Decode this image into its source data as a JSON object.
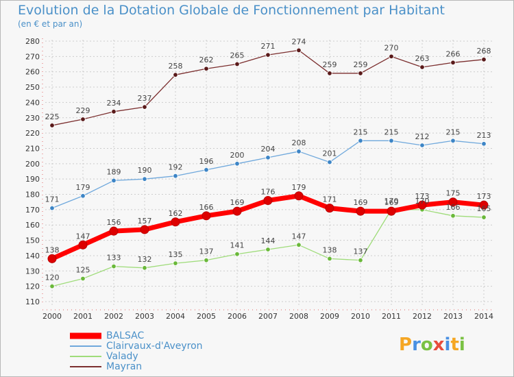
{
  "chart_data": {
    "type": "line",
    "title": "Evolution de la Dotation Globale de Fonctionnement par Habitant",
    "subtitle": "(en € et par an)",
    "x": [
      "2000",
      "2001",
      "2002",
      "2003",
      "2004",
      "2005",
      "2006",
      "2007",
      "2008",
      "2009",
      "2010",
      "2011",
      "2012",
      "2013",
      "2014"
    ],
    "ylim": [
      110,
      280
    ],
    "yticks": [
      "110",
      "120",
      "130",
      "140",
      "150",
      "160",
      "170",
      "180",
      "190",
      "200",
      "210",
      "220",
      "230",
      "240",
      "250",
      "260",
      "270",
      "280"
    ],
    "grid": true,
    "legend_position": "bottom-left",
    "series": [
      {
        "name": "BALSAC",
        "color": "#ff0000",
        "marker": "#dd0000",
        "values": [
          138,
          147,
          156,
          157,
          162,
          166,
          169,
          176,
          179,
          171,
          169,
          169,
          173,
          175,
          173
        ],
        "labels": [
          "138",
          "147",
          "156",
          "157",
          "162",
          "166",
          "169",
          "176",
          "179",
          "171",
          "169",
          "169",
          "173",
          "175",
          "173"
        ]
      },
      {
        "name": "Clairvaux-d'Aveyron",
        "color": "#6fa8dc",
        "marker": "#3d85c6",
        "values": [
          171,
          179,
          189,
          190,
          192,
          196,
          200,
          204,
          208,
          201,
          215,
          215,
          212,
          215,
          213
        ],
        "labels": [
          "171",
          "179",
          "189",
          "190",
          "192",
          "196",
          "200",
          "204",
          "208",
          "201",
          "215",
          "215",
          "212",
          "215",
          "213"
        ]
      },
      {
        "name": "Valady",
        "color": "#9fdc7a",
        "marker": "#6ab83a",
        "values": [
          120,
          125,
          133,
          132,
          135,
          137,
          141,
          144,
          147,
          138,
          137,
          170,
          170,
          166,
          165
        ],
        "labels": [
          "120",
          "125",
          "133",
          "132",
          "135",
          "137",
          "141",
          "144",
          "147",
          "138",
          "137",
          "170",
          "170",
          "166",
          "165"
        ]
      },
      {
        "name": "Mayran",
        "color": "#7b2e2e",
        "marker": "#5a1a1a",
        "values": [
          225,
          229,
          234,
          237,
          258,
          262,
          265,
          271,
          274,
          259,
          259,
          270,
          263,
          266,
          268
        ],
        "labels": [
          "225",
          "229",
          "234",
          "237",
          "258",
          "262",
          "265",
          "271",
          "274",
          "259",
          "259",
          "270",
          "263",
          "266",
          "268"
        ]
      }
    ]
  },
  "logo": {
    "letters": [
      "P",
      "r",
      "o",
      "x",
      "i",
      "t",
      "i"
    ],
    "colors": [
      "#f5a623",
      "#4a90e2",
      "#7ac143",
      "#e74c3c",
      "#4a90e2",
      "#f5a623",
      "#7ac143"
    ]
  }
}
